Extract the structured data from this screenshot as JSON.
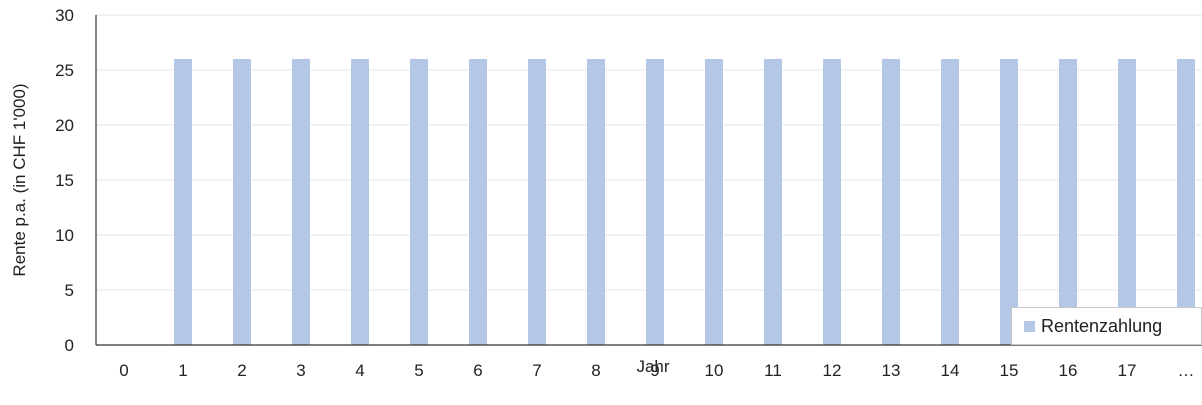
{
  "chart_data": {
    "type": "bar",
    "categories": [
      "0",
      "1",
      "2",
      "3",
      "4",
      "5",
      "6",
      "7",
      "8",
      "9",
      "10",
      "11",
      "12",
      "13",
      "14",
      "15",
      "16",
      "17",
      "…"
    ],
    "series": [
      {
        "name": "Rentenzahlung",
        "color": "#b4c7e7",
        "values": [
          0,
          26,
          26,
          26,
          26,
          26,
          26,
          26,
          26,
          26,
          26,
          26,
          26,
          26,
          26,
          26,
          26,
          26,
          26
        ]
      }
    ],
    "xlabel": "Jahr",
    "ylabel": "Rente p.a. (in CHF 1'000)",
    "ylim": [
      0,
      30
    ],
    "yticks": [
      0,
      5,
      10,
      15,
      20,
      25,
      30
    ],
    "grid": true,
    "gridColor": "#dfe5ef",
    "legend": "bottom-right"
  }
}
